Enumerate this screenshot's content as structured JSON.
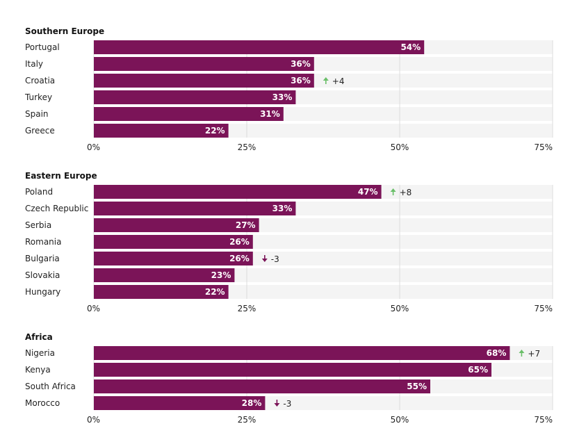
{
  "colors": {
    "bar": "#7b1458",
    "track": "#f4f4f4",
    "grid": "#dddddd",
    "up": "#6abf69",
    "down": "#7b1458"
  },
  "chart_data": [
    {
      "type": "bar",
      "orientation": "horizontal",
      "title": "Southern Europe",
      "xlim": [
        0,
        75
      ],
      "xticks": [
        "0%",
        "25%",
        "50%",
        "75%"
      ],
      "categories": [
        "Portugal",
        "Italy",
        "Croatia",
        "Turkey",
        "Spain",
        "Greece"
      ],
      "values": [
        54,
        36,
        36,
        33,
        31,
        22
      ],
      "value_labels": [
        "54%",
        "36%",
        "36%",
        "33%",
        "31%",
        "22%"
      ],
      "changes": [
        {
          "category": "Croatia",
          "direction": "up",
          "label": "+4"
        }
      ]
    },
    {
      "type": "bar",
      "orientation": "horizontal",
      "title": "Eastern Europe",
      "xlim": [
        0,
        75
      ],
      "xticks": [
        "0%",
        "25%",
        "50%",
        "75%"
      ],
      "categories": [
        "Poland",
        "Czech Republic",
        "Serbia",
        "Romania",
        "Bulgaria",
        "Slovakia",
        "Hungary"
      ],
      "values": [
        47,
        33,
        27,
        26,
        26,
        23,
        22
      ],
      "value_labels": [
        "47%",
        "33%",
        "27%",
        "26%",
        "26%",
        "23%",
        "22%"
      ],
      "changes": [
        {
          "category": "Poland",
          "direction": "up",
          "label": "+8"
        },
        {
          "category": "Bulgaria",
          "direction": "down",
          "label": "-3"
        }
      ]
    },
    {
      "type": "bar",
      "orientation": "horizontal",
      "title": "Africa",
      "xlim": [
        0,
        75
      ],
      "xticks": [
        "0%",
        "25%",
        "50%",
        "75%"
      ],
      "categories": [
        "Nigeria",
        "Kenya",
        "South Africa",
        "Morocco"
      ],
      "values": [
        68,
        65,
        55,
        28
      ],
      "value_labels": [
        "68%",
        "65%",
        "55%",
        "28%"
      ],
      "changes": [
        {
          "category": "Nigeria",
          "direction": "up",
          "label": "+7"
        },
        {
          "category": "Morocco",
          "direction": "down",
          "label": "-3"
        }
      ]
    }
  ]
}
